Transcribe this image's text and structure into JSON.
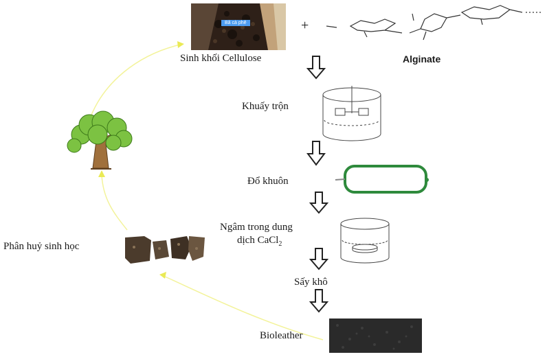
{
  "labels": {
    "cellulose": "Sinh khối Cellulose",
    "plus": "+",
    "alginate": "Alginate",
    "mix": "Khuấy trộn",
    "mold": "Đổ khuôn",
    "soak_line1": "Ngâm trong dung",
    "soak_line2_prefix": "dịch CaCl",
    "soak_line2_sub": "2",
    "dry": "Sấy khô",
    "bioleather": "Bioleather",
    "biodegrade": "Phân huỷ sinh học",
    "cafe_tag": "Bã cà phê"
  },
  "colors": {
    "cycle_arrow": "#f3f39a",
    "mold_ring": "#2e8a3c",
    "tree_leaves": "#7cc242",
    "tree_trunk": "#a0703c"
  },
  "icons": [
    "coffee-grounds-photo",
    "alginate-structure",
    "mixer-vessel",
    "mold-frame",
    "beaker-soak",
    "bioleather-sample",
    "degraded-fragments",
    "tree-icon"
  ]
}
